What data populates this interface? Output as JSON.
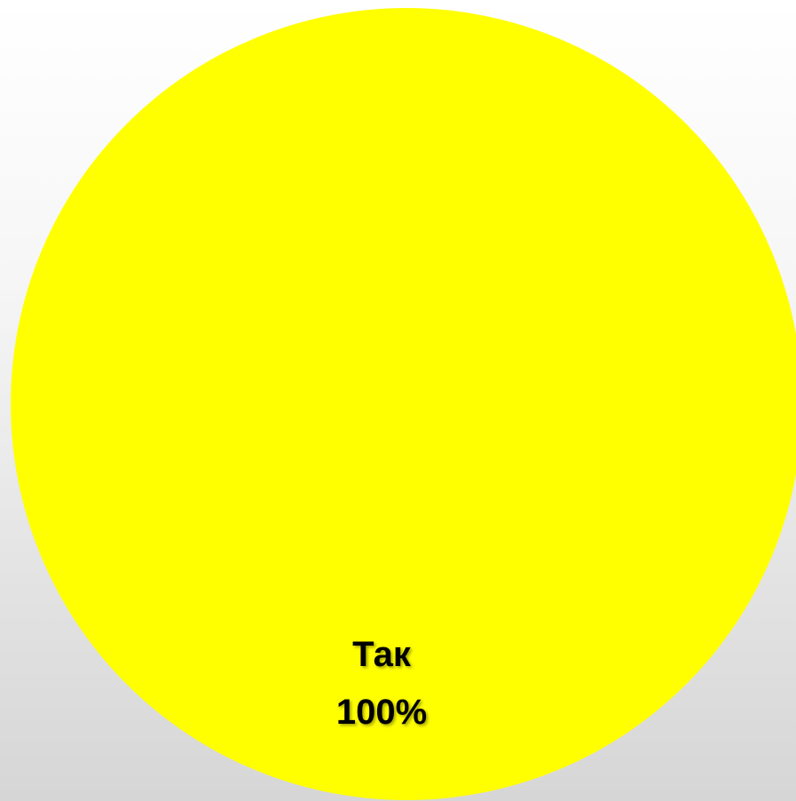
{
  "chart_data": {
    "type": "pie",
    "slices": [
      {
        "name": "Так",
        "value": 100,
        "label": "100%",
        "color": "#ffff00"
      }
    ]
  }
}
